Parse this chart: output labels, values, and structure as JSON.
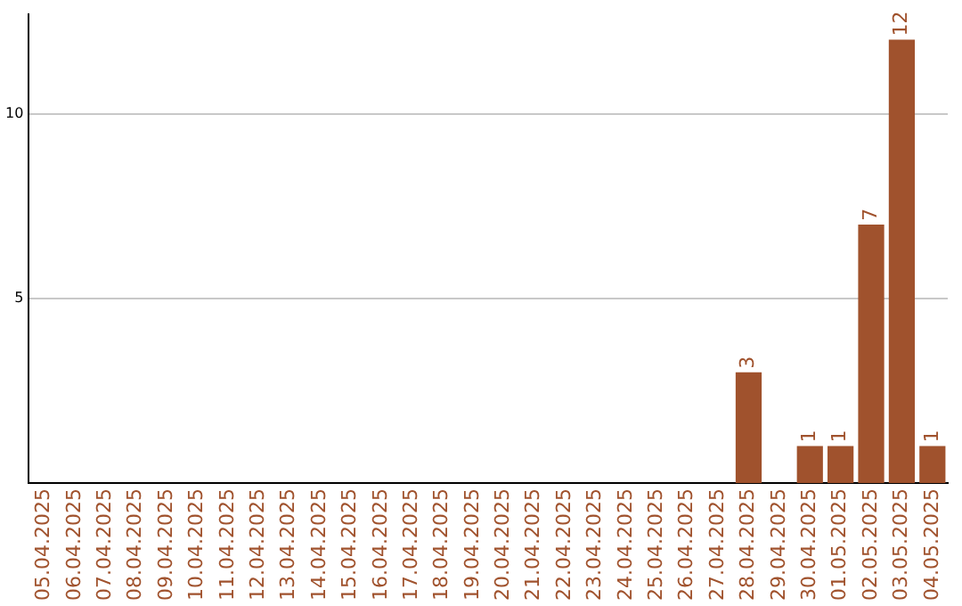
{
  "chart_data": {
    "type": "bar",
    "categories": [
      "05.04.2025",
      "06.04.2025",
      "07.04.2025",
      "08.04.2025",
      "09.04.2025",
      "10.04.2025",
      "11.04.2025",
      "12.04.2025",
      "13.04.2025",
      "14.04.2025",
      "15.04.2025",
      "16.04.2025",
      "17.04.2025",
      "18.04.2025",
      "19.04.2025",
      "20.04.2025",
      "21.04.2025",
      "22.04.2025",
      "23.04.2025",
      "24.04.2025",
      "25.04.2025",
      "26.04.2025",
      "27.04.2025",
      "28.04.2025",
      "29.04.2025",
      "30.04.2025",
      "01.05.2025",
      "02.05.2025",
      "03.05.2025",
      "04.05.2025"
    ],
    "values": [
      0,
      0,
      0,
      0,
      0,
      0,
      0,
      0,
      0,
      0,
      0,
      0,
      0,
      0,
      0,
      0,
      0,
      0,
      0,
      0,
      0,
      0,
      0,
      3,
      0,
      1,
      1,
      7,
      12,
      1
    ],
    "value_labels": [
      null,
      null,
      null,
      null,
      null,
      null,
      null,
      null,
      null,
      null,
      null,
      null,
      null,
      null,
      null,
      null,
      null,
      null,
      null,
      null,
      null,
      null,
      null,
      "3",
      null,
      "1",
      "1",
      "7",
      "12",
      "1"
    ],
    "color": "#a0522d",
    "ylim": [
      0,
      12.7
    ],
    "yticks": [
      5,
      10
    ],
    "grid": "y",
    "legend": false
  }
}
